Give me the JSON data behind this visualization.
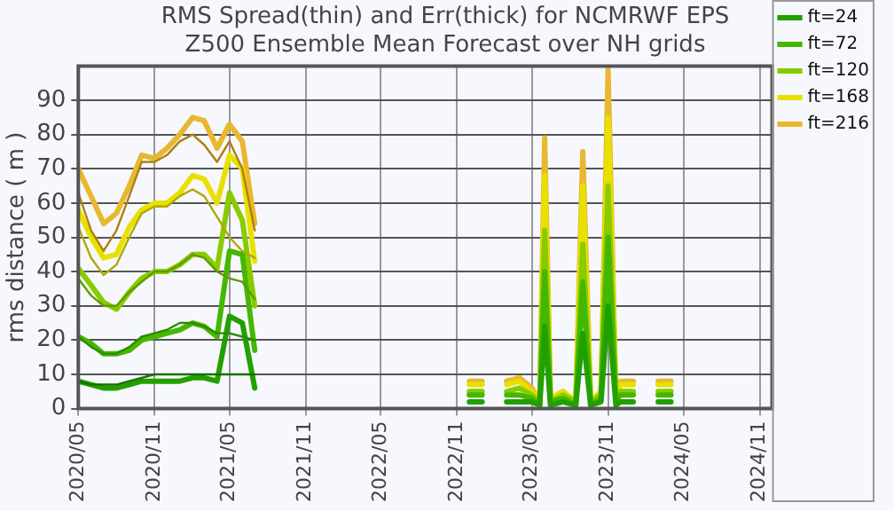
{
  "chart_data": {
    "type": "line",
    "title": [
      "RMS Spread(thin) and Err(thick) for NCMRWF EPS",
      "Z500 Ensemble Mean Forecast over NH grids"
    ],
    "ylabel": "rms distance ( m )",
    "x": [
      "2020-05",
      "2020-06",
      "2020-07",
      "2020-08",
      "2020-09",
      "2020-10",
      "2020-11",
      "2020-12",
      "2021-01",
      "2021-02",
      "2021-03",
      "2021-04",
      "2021-05",
      "2021-06",
      "2021-07",
      "2022-01",
      "2022-12",
      "2023-01",
      "2023-02",
      "2023-03",
      "2023-04",
      "2023-05",
      "2023-05-20",
      "2023-06-01",
      "2023-06-15",
      "2023-07-15",
      "2023-08-15",
      "2023-09-01",
      "2023-09-20",
      "2023-10-15",
      "2023-11-01",
      "2023-11-20",
      "2023-12",
      "2024-01",
      "2024-02",
      "2024-03",
      "2024-04"
    ],
    "series": [
      {
        "name": "ft=24",
        "color": "#22a000",
        "values": [
          8,
          7,
          6,
          6,
          7,
          8,
          8,
          8,
          8,
          9,
          9,
          8,
          27,
          25,
          6,
          null,
          2,
          2,
          null,
          2,
          2,
          2,
          1,
          24,
          1,
          2,
          1,
          22,
          1,
          2,
          30,
          1,
          2,
          2,
          null,
          2,
          2
        ]
      },
      {
        "name": "ft=72",
        "color": "#44b800",
        "values": [
          21,
          19,
          16,
          16,
          17,
          20,
          21,
          22,
          23,
          25,
          24,
          21,
          46,
          45,
          17,
          null,
          4,
          4,
          null,
          4,
          4,
          3,
          1,
          40,
          2,
          3,
          1,
          37,
          1,
          3,
          50,
          2,
          4,
          4,
          null,
          4,
          4
        ]
      },
      {
        "name": "ft=120",
        "color": "#88cc00",
        "values": [
          41,
          36,
          31,
          29,
          34,
          38,
          40,
          40,
          42,
          45,
          45,
          41,
          63,
          55,
          30,
          null,
          5,
          5,
          null,
          5,
          6,
          4,
          2,
          52,
          2,
          4,
          2,
          48,
          2,
          4,
          65,
          2,
          5,
          5,
          null,
          5,
          5
        ]
      },
      {
        "name": "ft=168",
        "color": "#e8e000",
        "values": [
          58,
          50,
          44,
          45,
          53,
          58,
          60,
          60,
          63,
          68,
          67,
          60,
          74,
          70,
          43,
          null,
          7,
          7,
          null,
          7,
          8,
          5,
          2,
          68,
          3,
          5,
          2,
          65,
          2,
          5,
          85,
          3,
          7,
          7,
          null,
          7,
          7
        ]
      },
      {
        "name": "ft=216",
        "color": "#e8b830",
        "values": [
          70,
          62,
          54,
          57,
          65,
          74,
          73,
          76,
          80,
          85,
          84,
          76,
          83,
          78,
          54,
          null,
          8,
          8,
          null,
          8,
          9,
          6,
          2,
          79,
          3,
          5,
          2,
          75,
          2,
          5,
          99,
          3,
          8,
          8,
          null,
          8,
          8
        ]
      },
      {
        "color": "#177000",
        "x": [
          "2020-05",
          "2020-06",
          "2020-07",
          "2020-08",
          "2020-09",
          "2020-10",
          "2020-11",
          "2020-12",
          "2021-01",
          "2021-02",
          "2021-03",
          "2021-04",
          "2021-05",
          "2021-06",
          "2021-07"
        ],
        "values": [
          8,
          7,
          7,
          7,
          8,
          9,
          10,
          10,
          10,
          10,
          10,
          10,
          10,
          10,
          10
        ]
      },
      {
        "color": "#2e8a00",
        "x": [
          "2020-05",
          "2020-06",
          "2020-07",
          "2020-08",
          "2020-09",
          "2020-10",
          "2020-11",
          "2020-12",
          "2021-01",
          "2021-02",
          "2021-03",
          "2021-04",
          "2021-05",
          "2021-06",
          "2021-07"
        ],
        "values": [
          21,
          18,
          16,
          16,
          18,
          21,
          22,
          23,
          25,
          25,
          24,
          22,
          22,
          21,
          20
        ]
      },
      {
        "color": "#5f9a00",
        "x": [
          "2020-05",
          "2020-06",
          "2020-07",
          "2020-08",
          "2020-09",
          "2020-10",
          "2020-11",
          "2020-12",
          "2021-01",
          "2021-02",
          "2021-03",
          "2021-04",
          "2021-05",
          "2021-06",
          "2021-07"
        ],
        "values": [
          38,
          33,
          30,
          30,
          34,
          37,
          40,
          40,
          42,
          45,
          44,
          40,
          38,
          37,
          32
        ]
      },
      {
        "color": "#b0a800",
        "x": [
          "2020-05",
          "2020-06",
          "2020-07",
          "2020-08",
          "2020-09",
          "2020-10",
          "2020-11",
          "2020-12",
          "2021-01",
          "2021-02",
          "2021-03",
          "2021-04",
          "2021-05",
          "2021-06",
          "2021-07"
        ],
        "values": [
          53,
          44,
          39,
          42,
          50,
          57,
          59,
          59,
          62,
          64,
          62,
          56,
          50,
          46,
          44
        ]
      },
      {
        "color": "#b07e10",
        "x": [
          "2020-05",
          "2020-06",
          "2020-07",
          "2020-08",
          "2020-09",
          "2020-10",
          "2020-11",
          "2020-12",
          "2021-01",
          "2021-02",
          "2021-03",
          "2021-04",
          "2021-05",
          "2021-06",
          "2021-07"
        ],
        "values": [
          63,
          52,
          46,
          52,
          62,
          72,
          72,
          74,
          78,
          80,
          77,
          72,
          78,
          70,
          52
        ]
      }
    ],
    "xlim": [
      "2020-05",
      "2024-12"
    ],
    "xticks": [
      {
        "value": "2020-05",
        "label": "2020/05"
      },
      {
        "value": "2020-11",
        "label": "2020/11"
      },
      {
        "value": "2021-05",
        "label": "2021/05"
      },
      {
        "value": "2021-11",
        "label": "2021/11"
      },
      {
        "value": "2022-05",
        "label": "2022/05"
      },
      {
        "value": "2022-11",
        "label": "2022/11"
      },
      {
        "value": "2023-05",
        "label": "2023/05"
      },
      {
        "value": "2023-11",
        "label": "2023/11"
      },
      {
        "value": "2024-05",
        "label": "2024/05"
      },
      {
        "value": "2024-11",
        "label": "2024/11"
      }
    ],
    "ylim": [
      0,
      100
    ],
    "yticks": [
      0,
      10,
      20,
      30,
      40,
      50,
      60,
      70,
      80,
      90
    ],
    "grid": true,
    "legend": "top right",
    "marker": "none",
    "line_style": "solid"
  }
}
